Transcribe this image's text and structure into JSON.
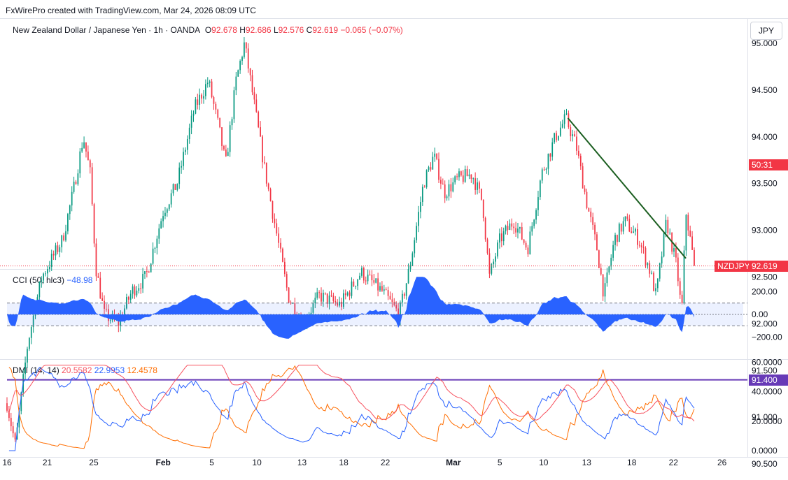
{
  "credit": "FxWirePro created with TradingView.com, Mar 24, 2026 08:09 UTC",
  "currency_button": "JPY",
  "symbol": {
    "name": "New Zealand Dollar / Japanese Yen · 1h · OANDA",
    "o_label": "O",
    "o": "92.678",
    "h_label": "H",
    "h": "92.686",
    "l_label": "L",
    "l": "92.576",
    "c_label": "C",
    "c": "92.619",
    "change": "−0.065 (−0.07%)",
    "ticker_tag": "NZDJPY",
    "price_tag": "92.619",
    "countdown": "50:31"
  },
  "colors": {
    "up": "#089981",
    "down": "#f23645",
    "support": "#673ab7",
    "trend": "#1b5e20",
    "cci": "#2962ff",
    "dmi_plus": "#2962ff",
    "dmi_minus": "#ff6d00",
    "adx": "#f7525f"
  },
  "support": {
    "label": "91.400",
    "value": 91.4
  },
  "cci": {
    "title": "CCI (50, hlc3)",
    "value": "−48.98",
    "ticks": [
      "200.00",
      "0.00",
      "−200.00"
    ],
    "tick_values": [
      200,
      0,
      -200
    ],
    "band": [
      -100,
      100
    ]
  },
  "dmi": {
    "title": "DMI (14, 14)",
    "plus": "12.4578",
    "minus": "22.9953",
    "adx": "20.5582",
    "ticks": [
      "60.0000",
      "40.0000",
      "20.0000",
      "0.0000"
    ],
    "tick_values": [
      60,
      40,
      20,
      0
    ]
  },
  "chart_data": {
    "type": "candlestick",
    "title": "New Zealand Dollar / Japanese Yen · 1h · OANDA",
    "y_ticks": [
      "95.000",
      "94.500",
      "94.000",
      "93.500",
      "93.000",
      "92.500",
      "92.000",
      "91.500",
      "91.000",
      "90.500"
    ],
    "y_tick_values": [
      95,
      94.5,
      94,
      93.5,
      93,
      92.5,
      92,
      91.5,
      91,
      90.5
    ],
    "x_ticks": [
      "16",
      "21",
      "25",
      "Feb",
      "5",
      "10",
      "13",
      "18",
      "22",
      "Mar",
      "5",
      "10",
      "13",
      "18",
      "22",
      "26"
    ],
    "anchors": [
      [
        0,
        91.15
      ],
      [
        1.2,
        90.7
      ],
      [
        3,
        91.8
      ],
      [
        5,
        92.5
      ],
      [
        8,
        92.9
      ],
      [
        9.5,
        93.4
      ],
      [
        11,
        94.0
      ],
      [
        12,
        93.6
      ],
      [
        12.8,
        92.6
      ],
      [
        14,
        92.1
      ],
      [
        16,
        92.0
      ],
      [
        18,
        92.35
      ],
      [
        20,
        92.5
      ],
      [
        22.5,
        93.2
      ],
      [
        24.5,
        93.5
      ],
      [
        27,
        94.3
      ],
      [
        29,
        94.6
      ],
      [
        30.5,
        94.1
      ],
      [
        31.5,
        93.7
      ],
      [
        33,
        94.6
      ],
      [
        34.2,
        95.0
      ],
      [
        35.5,
        94.4
      ],
      [
        37,
        93.7
      ],
      [
        38.5,
        93.1
      ],
      [
        40.5,
        92.3
      ],
      [
        42.5,
        92.0
      ],
      [
        45,
        92.3
      ],
      [
        48,
        92.2
      ],
      [
        51,
        92.55
      ],
      [
        54,
        92.35
      ],
      [
        56.5,
        92.1
      ],
      [
        58,
        92.6
      ],
      [
        60,
        93.5
      ],
      [
        61.5,
        93.8
      ],
      [
        63,
        93.4
      ],
      [
        65,
        93.55
      ],
      [
        67,
        93.6
      ],
      [
        68.5,
        93.3
      ],
      [
        69.5,
        92.5
      ],
      [
        71,
        92.9
      ],
      [
        73,
        93.1
      ],
      [
        75,
        92.8
      ],
      [
        77,
        93.6
      ],
      [
        79,
        94.0
      ],
      [
        80.5,
        94.2
      ],
      [
        82,
        93.9
      ],
      [
        83.5,
        93.3
      ],
      [
        85,
        92.8
      ],
      [
        86,
        92.3
      ],
      [
        87.5,
        92.9
      ],
      [
        89,
        93.1
      ],
      [
        91,
        92.9
      ],
      [
        92.5,
        92.6
      ],
      [
        93.5,
        92.3
      ],
      [
        95,
        93.1
      ],
      [
        96.5,
        92.6
      ],
      [
        97.2,
        92.1
      ],
      [
        97.8,
        93.2
      ],
      [
        99,
        92.62
      ]
    ],
    "trendline": {
      "from": [
        80.8,
        94.2
      ],
      "to": [
        97.8,
        92.7
      ]
    },
    "last_price": 92.619,
    "candle_count": 340
  }
}
